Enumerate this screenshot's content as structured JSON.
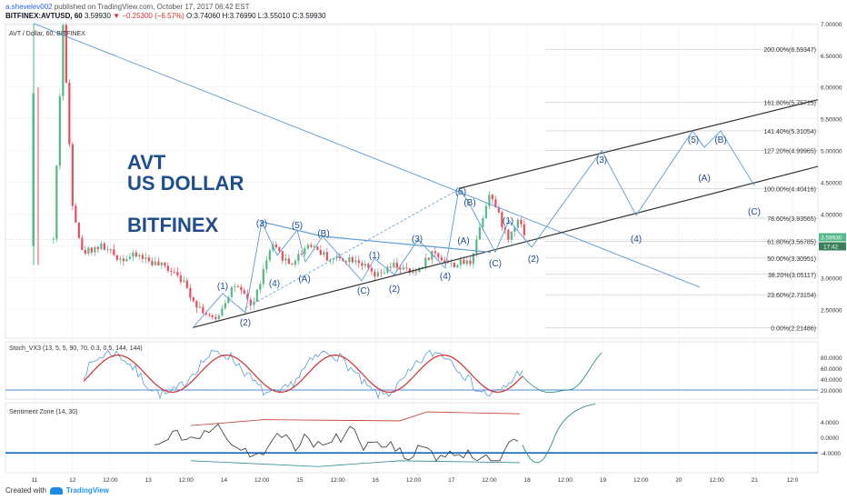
{
  "header": {
    "user": "a.shevelev002",
    "published": "published on TradingView.com, October 17, 2017 06:42 EST",
    "symbol": "BITFINEX:AVTUSD, 60",
    "price": "3.59930",
    "change": "▼ −0.25300 (−6.57%)",
    "ohlc": "O:3.74060 H:3.76990 L:3.55010 C:3.59930"
  },
  "chart_title": "AVT / Dollar, 60, BITFINEX",
  "big_label": [
    "AVT",
    "US DOLLAR",
    "BITFINEX"
  ],
  "colors": {
    "up": "#53b987",
    "down": "#eb4d5c",
    "trend": "#5b9bd5",
    "label_blue": "#1f4e8c",
    "channel": "#333333",
    "stoch_k": "#5b9bd5",
    "stoch_d": "#d32f2f",
    "hline": "#1565c0"
  },
  "chart_data": {
    "type": "line",
    "title": "AVT / Dollar, 60, BITFINEX",
    "x_ticks": [
      "11",
      "12",
      "12:00",
      "13",
      "12:00",
      "14",
      "12:00",
      "15",
      "12:00",
      "16",
      "12:00",
      "17",
      "12:00",
      "18",
      "12:00",
      "19",
      "12:00",
      "20",
      "12:00",
      "21",
      "12:0"
    ],
    "y_ticks": [
      "7.50000",
      "7.00000",
      "6.50000",
      "6.00000",
      "5.50000",
      "5.00000",
      "4.50000",
      "4.00000",
      "3.50000",
      "3.00000",
      "2.50000"
    ],
    "last_price": "3.59930",
    "countdown": "17:42",
    "price_path": [
      [
        "11 06:00",
        3.6
      ],
      [
        "11 09:00",
        7.0
      ],
      [
        "11 12:00",
        4.2
      ],
      [
        "11 15:00",
        3.4
      ],
      [
        "11 21:00",
        3.5
      ],
      [
        "12 03:00",
        3.3
      ],
      [
        "12 09:00",
        3.35
      ],
      [
        "12 15:00",
        3.2
      ],
      [
        "12 21:00",
        3.1
      ],
      [
        "13 03:00",
        2.6
      ],
      [
        "13 09:00",
        2.3
      ],
      [
        "13 15:00",
        2.9
      ],
      [
        "13 21:00",
        2.55
      ],
      [
        "14 03:00",
        3.5
      ],
      [
        "14 09:00",
        3.2
      ],
      [
        "14 15:00",
        3.55
      ],
      [
        "14 21:00",
        3.3
      ],
      [
        "15 06:00",
        3.3
      ],
      [
        "15 12:00",
        3.0
      ],
      [
        "15 18:00",
        3.2
      ],
      [
        "16 00:00",
        3.05
      ],
      [
        "16 06:00",
        3.4
      ],
      [
        "16 12:00",
        3.2
      ],
      [
        "16 18:00",
        3.25
      ],
      [
        "17 00:00",
        4.35
      ],
      [
        "17 06:00",
        3.6
      ],
      [
        "17 09:00",
        3.95
      ],
      [
        "17 12:00",
        3.6
      ]
    ],
    "fib_levels": [
      {
        "label": "200.00%(6.59347)",
        "value": 6.59347
      },
      {
        "label": "161.80%(5.75715)",
        "value": 5.75715
      },
      {
        "label": "141.40%(5.31054)",
        "value": 5.31054
      },
      {
        "label": "127.20%(4.99965)",
        "value": 4.99965
      },
      {
        "label": "100.00%(4.40416)",
        "value": 4.40416
      },
      {
        "label": "78.60%(3.93565)",
        "value": 3.93565
      },
      {
        "label": "61.80%(3.56785)",
        "value": 3.56785
      },
      {
        "label": "50.00%(3.30951)",
        "value": 3.30951
      },
      {
        "label": "38.20%(3.05117)",
        "value": 3.05117
      },
      {
        "label": "23.60%(2.73154)",
        "value": 2.73154
      },
      {
        "label": "0.00%(2.21486)",
        "value": 2.21486
      }
    ],
    "wave_labels": [
      "(1)",
      "(2)",
      "(3)",
      "(4)",
      "(5)",
      "(B)",
      "(A)",
      "(3)",
      "(4)",
      "(C)",
      "(1)",
      "(2)",
      "(3)",
      "(4)",
      "(5)",
      "(B)",
      "(A)",
      "(C)",
      "(1)",
      "(2)",
      "(3)",
      "(4)",
      "(5)",
      "(B)",
      "(A)",
      "(C)"
    ],
    "stoch": {
      "label": "Stoch_VX3 (13, 5, 5, 90, 70, 0.3, 0.5, 144, 144)",
      "ticks": [
        "80.0000",
        "60.0000",
        "40.0000",
        "20.0000"
      ]
    },
    "sentiment": {
      "label": "Sentiment Zone (14, 30)",
      "ticks": [
        "4.0000",
        "0.0000",
        "-4.0000"
      ]
    }
  },
  "footer": {
    "created_with": "Created with",
    "brand": "TradingView"
  }
}
